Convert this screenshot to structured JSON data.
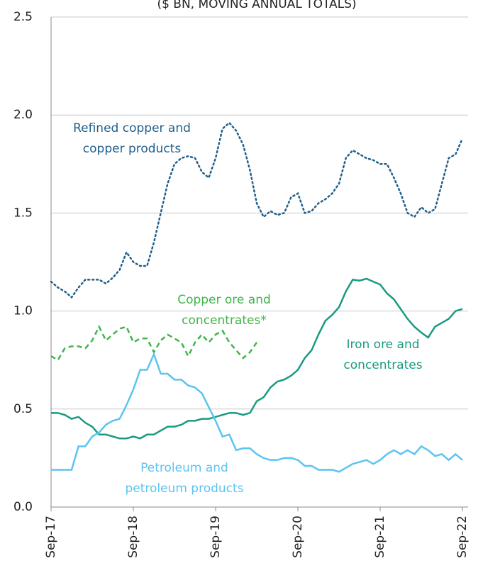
{
  "chart_data": {
    "type": "line",
    "title": "($ BN, MOVING ANNUAL TOTALS)",
    "categories": [
      "Sep-17",
      null,
      null,
      null,
      null,
      null,
      null,
      null,
      null,
      null,
      null,
      null,
      "Sep-18",
      null,
      null,
      null,
      null,
      null,
      null,
      null,
      null,
      null,
      null,
      null,
      "Sep-19",
      null,
      null,
      null,
      null,
      null,
      null,
      null,
      null,
      null,
      null,
      null,
      "Sep-20",
      null,
      null,
      null,
      null,
      null,
      null,
      null,
      null,
      null,
      null,
      null,
      "Sep-21",
      null,
      null,
      null,
      null,
      null,
      null,
      null,
      null,
      null,
      null,
      null,
      "Sep-22"
    ],
    "ylim": [
      0,
      2.5
    ],
    "yticks": [
      {
        "value": 0,
        "label": "0.0"
      },
      0.5,
      {
        "value": 1,
        "label": "1.0"
      },
      1.5,
      {
        "value": 2,
        "label": "2.0"
      },
      2.5
    ],
    "grid": true,
    "series": [
      {
        "name": "Refined copper and copper products",
        "color": "#1f5f8b",
        "style": "dotted",
        "values": [
          1.15,
          1.12,
          1.1,
          1.07,
          1.12,
          1.16,
          1.16,
          1.16,
          1.14,
          1.17,
          1.21,
          1.3,
          1.25,
          1.23,
          1.23,
          1.35,
          1.5,
          1.65,
          1.75,
          1.78,
          1.79,
          1.78,
          1.71,
          1.68,
          1.78,
          1.93,
          1.96,
          1.92,
          1.85,
          1.72,
          1.55,
          1.48,
          1.51,
          1.49,
          1.5,
          1.58,
          1.6,
          1.5,
          1.51,
          1.55,
          1.57,
          1.6,
          1.65,
          1.78,
          1.82,
          1.8,
          1.78,
          1.77,
          1.75,
          1.75,
          1.68,
          1.6,
          1.5,
          1.48,
          1.53,
          1.5,
          1.52,
          1.65,
          1.78,
          1.8,
          1.88
        ]
      },
      {
        "name": "Copper ore and concentrates*",
        "color": "#3fb54a",
        "style": "dashed",
        "values": [
          0.77,
          0.75,
          0.81,
          0.82,
          0.82,
          0.81,
          0.85,
          0.92,
          0.85,
          0.88,
          0.91,
          0.92,
          0.84,
          0.86,
          0.86,
          0.79,
          0.85,
          0.88,
          0.86,
          0.84,
          0.77,
          0.84,
          0.88,
          0.84,
          0.88,
          0.9,
          0.84,
          0.8,
          0.76,
          0.79,
          0.84,
          null,
          null,
          null,
          null,
          null,
          null,
          null,
          null,
          null,
          null,
          null,
          null,
          null,
          null,
          null,
          null,
          null,
          null,
          null,
          null,
          null,
          null,
          null,
          null,
          null,
          null,
          null,
          null,
          null,
          null
        ]
      },
      {
        "name": "Iron ore and concentrates",
        "color": "#1a9a82",
        "style": "solid",
        "values": [
          0.48,
          0.48,
          0.47,
          0.45,
          0.46,
          0.43,
          0.41,
          0.37,
          0.37,
          0.36,
          0.35,
          0.35,
          0.36,
          0.35,
          0.37,
          0.37,
          0.39,
          0.41,
          0.41,
          0.42,
          0.44,
          0.44,
          0.45,
          0.45,
          0.46,
          0.47,
          0.48,
          0.48,
          0.47,
          0.48,
          0.54,
          0.56,
          0.61,
          0.64,
          0.65,
          0.67,
          0.7,
          0.76,
          0.8,
          0.88,
          0.95,
          0.98,
          1.02,
          1.1,
          1.16,
          1.155,
          1.165,
          1.15,
          1.135,
          1.09,
          1.06,
          1.01,
          0.96,
          0.92,
          0.89,
          0.865,
          0.92,
          0.94,
          0.96,
          1.0,
          1.01
        ]
      },
      {
        "name": "Petroleum and petroleum products",
        "color": "#5bc4f1",
        "style": "solid",
        "values": [
          0.19,
          0.19,
          0.19,
          0.19,
          0.31,
          0.31,
          0.36,
          0.38,
          0.42,
          0.44,
          0.45,
          0.52,
          0.6,
          0.7,
          0.7,
          0.78,
          0.68,
          0.68,
          0.65,
          0.65,
          0.62,
          0.61,
          0.58,
          0.51,
          0.44,
          0.36,
          0.37,
          0.29,
          0.3,
          0.3,
          0.27,
          0.25,
          0.24,
          0.24,
          0.25,
          0.25,
          0.24,
          0.21,
          0.21,
          0.19,
          0.19,
          0.19,
          0.18,
          0.2,
          0.22,
          0.23,
          0.24,
          0.22,
          0.24,
          0.27,
          0.29,
          0.27,
          0.29,
          0.27,
          0.31,
          0.29,
          0.26,
          0.27,
          0.24,
          0.27,
          0.24
        ]
      }
    ],
    "annotations": [
      [
        "Refined copper and",
        "copper products"
      ],
      [
        "Copper ore and",
        "concentrates*"
      ],
      [
        "Iron ore and",
        "concentrates"
      ],
      [
        "Petroleum and",
        "petroleum products"
      ]
    ]
  }
}
